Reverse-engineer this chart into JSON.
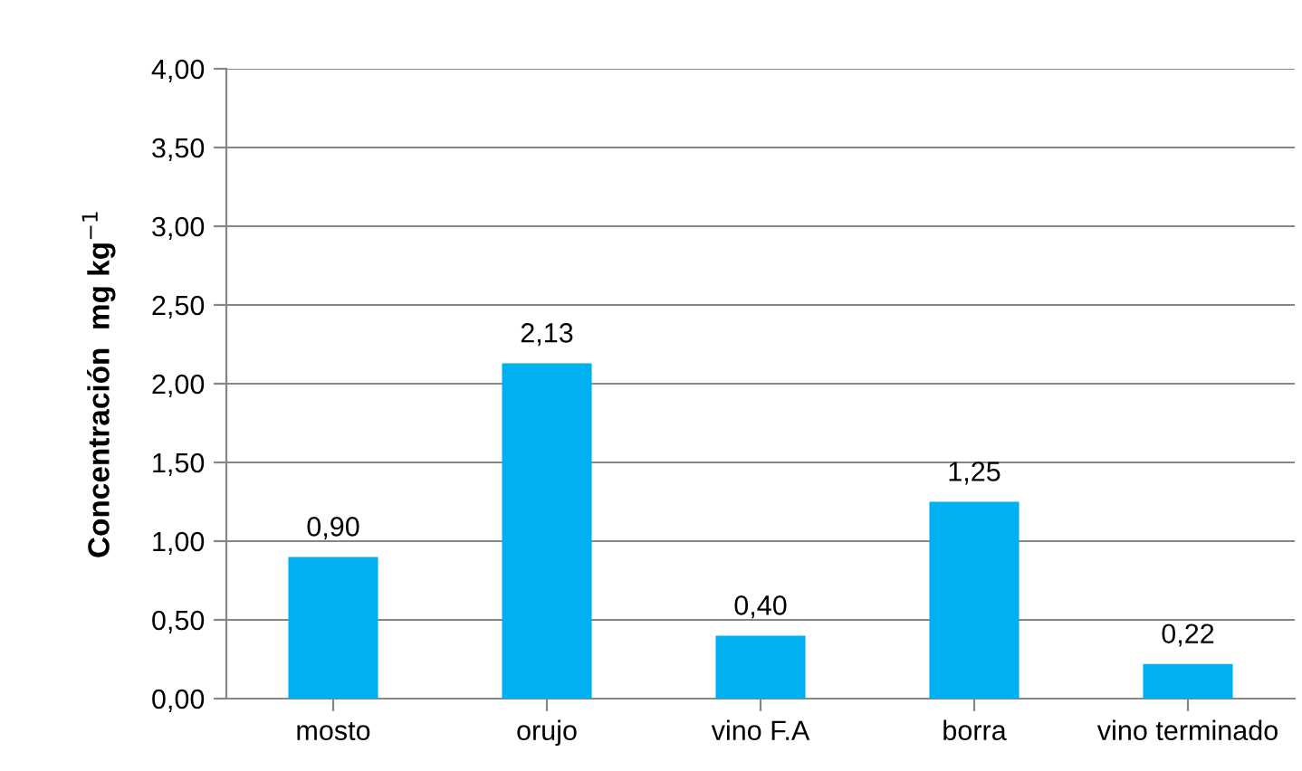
{
  "chart_data": {
    "type": "bar",
    "ylabel": "Concentración  mg kg$^{−1}$",
    "categories": [
      "mosto",
      "orujo",
      "vino F.A",
      "borra",
      "vino terminado"
    ],
    "values": [
      0.9,
      2.13,
      0.4,
      1.25,
      0.22
    ],
    "value_labels": [
      "0,90",
      "2,13",
      "0,40",
      "1,25",
      "0,22"
    ],
    "color": "#00b0f0",
    "ylim": [
      0,
      4
    ],
    "yticks": [
      {
        "value": 0,
        "label": "0,00"
      },
      {
        "value": 0.5,
        "label": "0,50"
      },
      {
        "value": 1,
        "label": "1,00"
      },
      {
        "value": 1.5,
        "label": "1,50"
      },
      {
        "value": 2,
        "label": "2,00"
      },
      {
        "value": 2.5,
        "label": "2,50"
      },
      {
        "value": 3,
        "label": "3,00"
      },
      {
        "value": 3.5,
        "label": "3,50"
      },
      {
        "value": 4,
        "label": "4,00"
      }
    ],
    "grid": "y"
  }
}
